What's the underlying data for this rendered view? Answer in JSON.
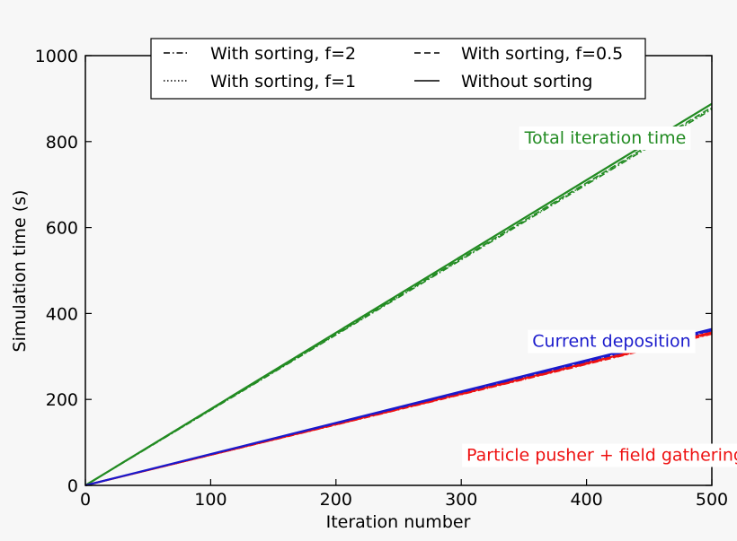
{
  "chart_data": {
    "type": "line",
    "xlabel": "Iteration number",
    "ylabel": "Simulation time (s)",
    "xlim": [
      0,
      500
    ],
    "ylim": [
      0,
      1000
    ],
    "xticks": [
      0,
      100,
      200,
      300,
      400,
      500
    ],
    "yticks": [
      0,
      200,
      400,
      600,
      800,
      1000
    ],
    "grid": false,
    "legend_position": "top-center",
    "legend": [
      {
        "label": "With sorting, f=2",
        "style": "dashdot"
      },
      {
        "label": "With sorting, f=0.5",
        "style": "dashed"
      },
      {
        "label": "With sorting, f=1",
        "style": "dotted"
      },
      {
        "label": "Without sorting",
        "style": "solid"
      }
    ],
    "annotations": [
      {
        "text": "Total iteration time",
        "color": "#228b22",
        "x": 415,
        "y": 810
      },
      {
        "text": "Current deposition",
        "color": "#1a1acc",
        "x": 420,
        "y": 337
      },
      {
        "text": "Particle pusher + field gathering",
        "color": "#ee1111",
        "x": 415,
        "y": 72
      }
    ],
    "series": [
      {
        "name": "Total iteration time, without sorting",
        "color": "#228b22",
        "style": "solid",
        "x": [
          0,
          500
        ],
        "y": [
          0,
          888
        ]
      },
      {
        "name": "Total iteration time, with sorting f=2",
        "color": "#228b22",
        "style": "dashdot",
        "x": [
          0,
          500
        ],
        "y": [
          0,
          875
        ]
      },
      {
        "name": "Total iteration time, with sorting f=0.5",
        "color": "#228b22",
        "style": "dashed",
        "x": [
          0,
          500
        ],
        "y": [
          0,
          880
        ]
      },
      {
        "name": "Total iteration time, with sorting f=1",
        "color": "#228b22",
        "style": "dotted",
        "x": [
          0,
          500
        ],
        "y": [
          0,
          878
        ]
      },
      {
        "name": "Particle pusher + field gathering, without sorting",
        "color": "#ee1111",
        "style": "solid",
        "x": [
          0,
          500
        ],
        "y": [
          0,
          356
        ]
      },
      {
        "name": "Particle pusher + field gathering, with sorting f=2",
        "color": "#ee1111",
        "style": "dashdot",
        "x": [
          0,
          500
        ],
        "y": [
          0,
          352
        ]
      },
      {
        "name": "Particle pusher + field gathering, with sorting f=0.5",
        "color": "#ee1111",
        "style": "dashed",
        "x": [
          0,
          500
        ],
        "y": [
          0,
          353
        ]
      },
      {
        "name": "Particle pusher + field gathering, with sorting f=1",
        "color": "#ee1111",
        "style": "dotted",
        "x": [
          0,
          500
        ],
        "y": [
          0,
          354
        ]
      },
      {
        "name": "Current deposition, without sorting",
        "color": "#1a1acc",
        "style": "solid",
        "x": [
          0,
          500
        ],
        "y": [
          0,
          364
        ]
      },
      {
        "name": "Current deposition, with sorting f=2",
        "color": "#1a1acc",
        "style": "dashdot",
        "x": [
          0,
          500
        ],
        "y": [
          0,
          360
        ]
      },
      {
        "name": "Current deposition, with sorting f=0.5",
        "color": "#1a1acc",
        "style": "dashed",
        "x": [
          0,
          500
        ],
        "y": [
          0,
          361
        ]
      },
      {
        "name": "Current deposition, with sorting f=1",
        "color": "#1a1acc",
        "style": "dotted",
        "x": [
          0,
          500
        ],
        "y": [
          0,
          362
        ]
      }
    ]
  }
}
